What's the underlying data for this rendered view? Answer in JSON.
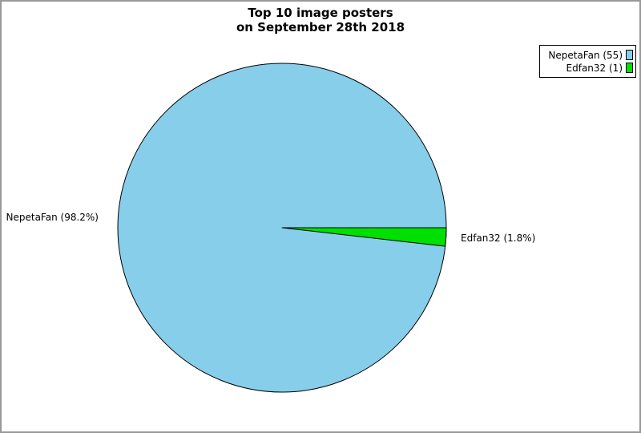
{
  "chart_data": {
    "type": "pie",
    "title": "Top 10 image posters",
    "subtitle": "on September 28th 2018",
    "legend_position": "top-right",
    "start_angle_deg": 0,
    "outline_color": "#000000",
    "frame_color": "#999999",
    "slices": [
      {
        "name": "NepetaFan",
        "count": 55,
        "percent": 98.2,
        "color": "#87CEEB",
        "slice_label": "NepetaFan (98.2%)",
        "legend_label": "NepetaFan (55)"
      },
      {
        "name": "Edfan32",
        "count": 1,
        "percent": 1.8,
        "color": "#00E000",
        "slice_label": "Edfan32 (1.8%)",
        "legend_label": "Edfan32 (1)"
      }
    ]
  }
}
